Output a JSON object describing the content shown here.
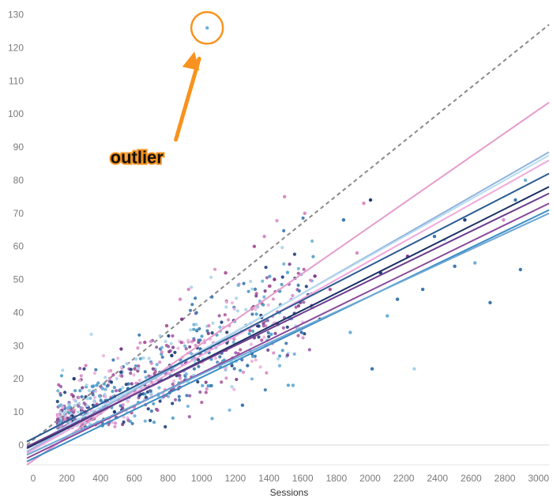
{
  "chart_data": {
    "type": "scatter",
    "title": "",
    "xlabel": "Sessions",
    "ylabel": "",
    "xlim": [
      0,
      3100
    ],
    "ylim": [
      -6,
      133
    ],
    "x_ticks": [
      0,
      200,
      400,
      600,
      800,
      1000,
      1200,
      1400,
      1600,
      1800,
      2000,
      2200,
      2400,
      2600,
      2800,
      3000
    ],
    "y_ticks": [
      0,
      10,
      20,
      30,
      40,
      50,
      60,
      70,
      80,
      90,
      100,
      110,
      120,
      130
    ],
    "gridlines": false,
    "legend": "none",
    "palette": [
      "#1f3f7a",
      "#3b78b0",
      "#6fb0d8",
      "#a7d3ea",
      "#7b3f8c",
      "#b05a9c",
      "#d88cc4",
      "#eab4dc",
      "#4a9cc9",
      "#9b5fa8"
    ],
    "reference_line": {
      "style": "dashed",
      "color": "#8a8a8a",
      "x": [
        0,
        3100
      ],
      "y": [
        0,
        127
      ]
    },
    "trend_lines": [
      {
        "color": "#e59ccb",
        "x": [
          0,
          3100
        ],
        "y": [
          -6,
          103.5
        ]
      },
      {
        "color": "#8fb3dd",
        "x": [
          0,
          3100
        ],
        "y": [
          -2,
          88.5
        ]
      },
      {
        "color": "#b9dcf0",
        "x": [
          0,
          3100
        ],
        "y": [
          -1,
          87.5
        ]
      },
      {
        "color": "#f0a8dc",
        "x": [
          0,
          3100
        ],
        "y": [
          -2.5,
          86
        ]
      },
      {
        "color": "#2a5c92",
        "x": [
          0,
          3100
        ],
        "y": [
          1,
          82
        ]
      },
      {
        "color": "#1a2f63",
        "x": [
          0,
          3100
        ],
        "y": [
          -1,
          78
        ]
      },
      {
        "color": "#6c3d8e",
        "x": [
          0,
          3100
        ],
        "y": [
          -0.5,
          76
        ]
      },
      {
        "color": "#8a4a9a",
        "x": [
          0,
          3100
        ],
        "y": [
          -4,
          73
        ]
      },
      {
        "color": "#3d8cc4",
        "x": [
          0,
          3100
        ],
        "y": [
          -5,
          71
        ]
      },
      {
        "color": "#6aa8d6",
        "x": [
          0,
          3100
        ],
        "y": [
          -3,
          70
        ]
      }
    ],
    "points": [
      {
        "x": 1070,
        "y": 126,
        "c": 2
      },
      {
        "x": 1530,
        "y": 75,
        "c": 6
      },
      {
        "x": 2040,
        "y": 74,
        "c": 0
      },
      {
        "x": 2000,
        "y": 73,
        "c": 6
      },
      {
        "x": 2960,
        "y": 80,
        "c": 2
      },
      {
        "x": 2480,
        "y": 62,
        "c": 3
      },
      {
        "x": 2930,
        "y": 53,
        "c": 1
      },
      {
        "x": 2750,
        "y": 43,
        "c": 1
      },
      {
        "x": 2660,
        "y": 55,
        "c": 2
      },
      {
        "x": 2540,
        "y": 54,
        "c": 1
      },
      {
        "x": 1880,
        "y": 68,
        "c": 1
      },
      {
        "x": 1410,
        "y": 63,
        "c": 6
      },
      {
        "x": 1350,
        "y": 60,
        "c": 5
      },
      {
        "x": 1470,
        "y": 50,
        "c": 4
      },
      {
        "x": 1440,
        "y": 48,
        "c": 5
      },
      {
        "x": 1650,
        "y": 70,
        "c": 6
      },
      {
        "x": 2200,
        "y": 44,
        "c": 1
      },
      {
        "x": 2050,
        "y": 23,
        "c": 1
      },
      {
        "x": 2300,
        "y": 23,
        "c": 3
      },
      {
        "x": 1710,
        "y": 51,
        "c": 4
      },
      {
        "x": 1630,
        "y": 34,
        "c": 1
      },
      {
        "x": 1580,
        "y": 18,
        "c": 2
      },
      {
        "x": 1280,
        "y": 12,
        "c": 1
      },
      {
        "x": 1100,
        "y": 8,
        "c": 2
      },
      {
        "x": 960,
        "y": 47,
        "c": 6
      },
      {
        "x": 910,
        "y": 44,
        "c": 6
      },
      {
        "x": 920,
        "y": 38,
        "c": 4
      },
      {
        "x": 700,
        "y": 31,
        "c": 5
      },
      {
        "x": 600,
        "y": 17,
        "c": 1
      },
      {
        "x": 520,
        "y": 10,
        "c": 0
      },
      {
        "x": 450,
        "y": 17,
        "c": 2
      },
      {
        "x": 400,
        "y": 8,
        "c": 5
      },
      {
        "x": 360,
        "y": 14,
        "c": 3
      },
      {
        "x": 300,
        "y": 6,
        "c": 3
      },
      {
        "x": 280,
        "y": 20,
        "c": 0
      },
      {
        "x": 830,
        "y": 36,
        "c": 5
      },
      {
        "x": 1030,
        "y": 29,
        "c": 1
      },
      {
        "x": 1230,
        "y": 32,
        "c": 6
      },
      {
        "x": 1310,
        "y": 24,
        "c": 1
      },
      {
        "x": 1370,
        "y": 36,
        "c": 0
      },
      {
        "x": 1500,
        "y": 40,
        "c": 2
      },
      {
        "x": 1570,
        "y": 44,
        "c": 6
      },
      {
        "x": 1740,
        "y": 38,
        "c": 0
      },
      {
        "x": 1800,
        "y": 47,
        "c": 5
      },
      {
        "x": 1920,
        "y": 34,
        "c": 2
      },
      {
        "x": 1960,
        "y": 58,
        "c": 6
      },
      {
        "x": 2100,
        "y": 52,
        "c": 0
      },
      {
        "x": 2140,
        "y": 39,
        "c": 2
      },
      {
        "x": 2260,
        "y": 57,
        "c": 4
      },
      {
        "x": 2350,
        "y": 47,
        "c": 1
      },
      {
        "x": 2420,
        "y": 63,
        "c": 1
      },
      {
        "x": 2600,
        "y": 68,
        "c": 0
      },
      {
        "x": 2830,
        "y": 68,
        "c": 6
      },
      {
        "x": 2900,
        "y": 74,
        "c": 1
      },
      {
        "x": 1180,
        "y": 52,
        "c": 5
      },
      {
        "x": 1080,
        "y": 36,
        "c": 6
      },
      {
        "x": 640,
        "y": 23,
        "c": 5
      },
      {
        "x": 740,
        "y": 20,
        "c": 1
      },
      {
        "x": 780,
        "y": 15,
        "c": 2
      },
      {
        "x": 860,
        "y": 27,
        "c": 0
      },
      {
        "x": 560,
        "y": 29,
        "c": 4
      },
      {
        "x": 480,
        "y": 13,
        "c": 5
      },
      {
        "x": 350,
        "y": 24,
        "c": 6
      },
      {
        "x": 990,
        "y": 21,
        "c": 3
      }
    ],
    "cluster": {
      "count": 720,
      "seed": 7,
      "x_range": [
        180,
        1700
      ],
      "slope": 0.025,
      "intercept": 2,
      "sd": 5.2
    },
    "annotations": [
      {
        "text": "outlier",
        "x": 275,
        "y": 87
      }
    ],
    "highlight": {
      "target_x": 1070,
      "target_y": 126,
      "color": "#f7931e"
    }
  }
}
